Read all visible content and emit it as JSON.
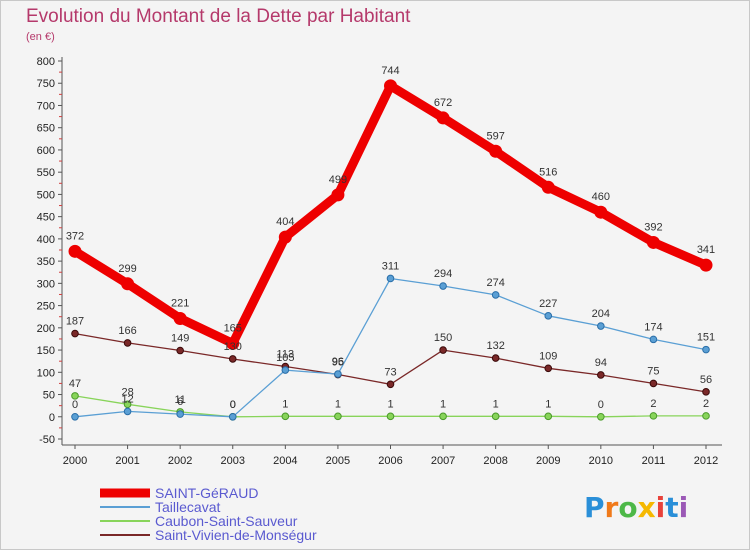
{
  "chart_data": {
    "type": "line",
    "title": "Evolution du Montant de la Dette par Habitant",
    "subtitle": "(en €)",
    "x": [
      "2000",
      "2001",
      "2002",
      "2003",
      "2004",
      "2005",
      "2006",
      "2007",
      "2008",
      "2009",
      "2010",
      "2011",
      "2012"
    ],
    "ylim": [
      -50,
      800
    ],
    "yticks": [
      -50,
      0,
      50,
      100,
      150,
      200,
      250,
      300,
      350,
      400,
      450,
      500,
      550,
      600,
      650,
      700,
      750,
      800
    ],
    "grid": false,
    "legend_position": "bottom-left",
    "series": [
      {
        "name": "SAINT-GéRAUD",
        "color": "#ee0000",
        "values": [
          372,
          299,
          221,
          165,
          404,
          499,
          744,
          672,
          597,
          516,
          460,
          392,
          341
        ]
      },
      {
        "name": "Taillecavat",
        "color": "#5a9fd4",
        "values": [
          0,
          12,
          6,
          0,
          105,
          96,
          311,
          294,
          274,
          227,
          204,
          174,
          151
        ]
      },
      {
        "name": "Caubon-Saint-Sauveur",
        "color": "#88d45a",
        "values": [
          47,
          28,
          11,
          0,
          1,
          1,
          1,
          1,
          1,
          1,
          0,
          2,
          2
        ]
      },
      {
        "name": "Saint-Vivien-de-Monségur",
        "color": "#7a2828",
        "values": [
          187,
          166,
          149,
          130,
          113,
          95,
          73,
          150,
          132,
          109,
          94,
          75,
          56
        ]
      }
    ]
  },
  "logo": {
    "text": "Proxiti",
    "colors": [
      "#2a8fd8",
      "#f07a1a",
      "#4db848",
      "#f5b800",
      "#e8423a",
      "#2a8fd8",
      "#9b59b6"
    ]
  }
}
